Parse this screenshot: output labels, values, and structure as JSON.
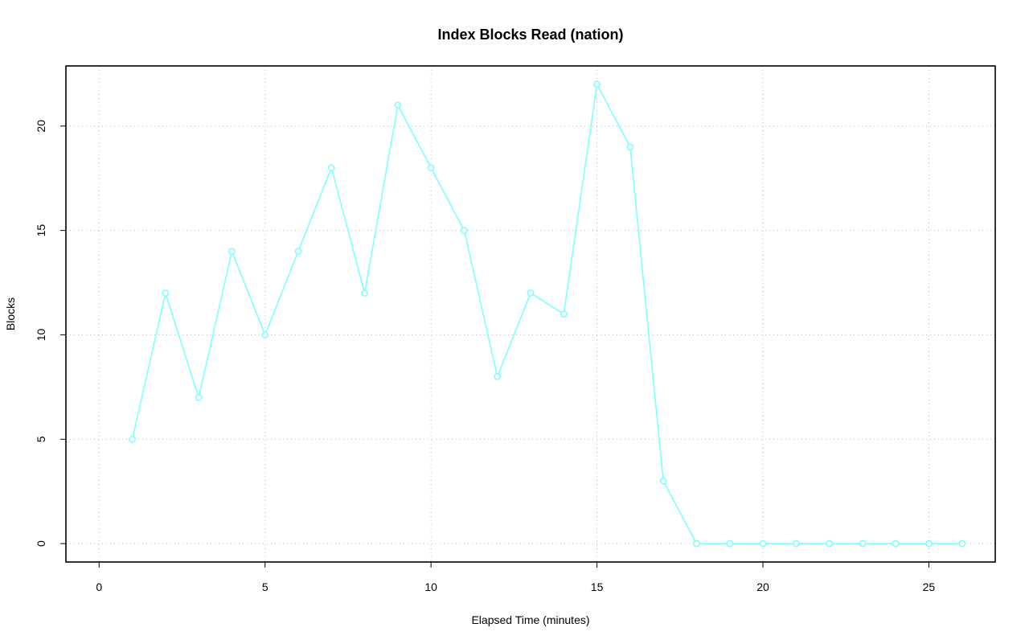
{
  "chart_data": {
    "type": "line",
    "title": "Index Blocks Read (nation)",
    "xlabel": "Elapsed Time (minutes)",
    "ylabel": "Blocks",
    "xlim": [
      -1,
      27
    ],
    "ylim": [
      -0.88,
      22.88
    ],
    "x_ticks": [
      0,
      5,
      10,
      15,
      20,
      25
    ],
    "y_ticks": [
      0,
      5,
      10,
      15,
      20
    ],
    "grid": true,
    "series": [
      {
        "color": "#7fffff",
        "x": [
          1,
          2,
          3,
          4,
          5,
          6,
          7,
          8,
          9,
          10,
          11,
          12,
          13,
          14,
          15,
          16,
          17,
          18,
          19,
          20,
          21,
          22,
          23,
          24,
          25,
          26
        ],
        "values": [
          5,
          12,
          7,
          14,
          10,
          14,
          18,
          12,
          21,
          18,
          15,
          8,
          12,
          11,
          22,
          19,
          3,
          0,
          0,
          0,
          0,
          0,
          0,
          0,
          0,
          0
        ]
      }
    ]
  }
}
